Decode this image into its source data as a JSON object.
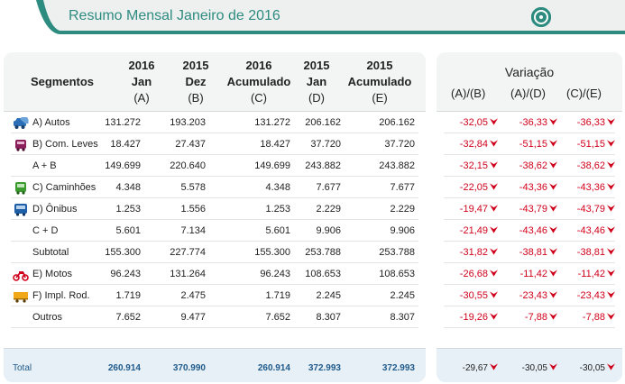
{
  "title": "Resumo Mensal Janeiro de 2016",
  "colors": {
    "accent": "#2d8b7f",
    "negative": "#d0021b",
    "total_text": "#1f5a8a"
  },
  "logos": [
    "wheel-logo-1",
    "wheel-logo-2",
    "wheel-logo-3",
    "wheel-logo-4"
  ],
  "table": {
    "headers": {
      "segmentos": "Segmentos",
      "c1": [
        "2016",
        "Jan",
        "(A)"
      ],
      "c2": [
        "2015",
        "Dez",
        "(B)"
      ],
      "c3": [
        "2016",
        "Acumulado",
        "(C)"
      ],
      "c4": [
        "2015",
        "Jan",
        "(D)"
      ],
      "c5": [
        "2015",
        "Acumulado",
        "(E)"
      ]
    },
    "variacao_title": "Variação",
    "variacao_headers": [
      "(A)/(B)",
      "(A)/(D)",
      "(C)/(E)"
    ],
    "rows": [
      {
        "label": "A) Autos",
        "icon": "car-icon",
        "values": [
          "131.272",
          "193.203",
          "131.272",
          "206.162",
          "206.162"
        ],
        "var": [
          "-32,05",
          "-36,33",
          "-36,33"
        ]
      },
      {
        "label": "B) Com. Leves",
        "icon": "van-icon",
        "values": [
          "18.427",
          "27.437",
          "18.427",
          "37.720",
          "37.720"
        ],
        "var": [
          "-32,84",
          "-51,15",
          "-51,15"
        ]
      },
      {
        "label": "A + B",
        "icon": "",
        "values": [
          "149.699",
          "220.640",
          "149.699",
          "243.882",
          "243.882"
        ],
        "var": [
          "-32,15",
          "-38,62",
          "-38,62"
        ]
      },
      {
        "label": "C) Caminhões",
        "icon": "truck-icon",
        "values": [
          "4.348",
          "5.578",
          "4.348",
          "7.677",
          "7.677"
        ],
        "var": [
          "-22,05",
          "-43,36",
          "-43,36"
        ]
      },
      {
        "label": "D) Ônibus",
        "icon": "bus-icon",
        "values": [
          "1.253",
          "1.556",
          "1.253",
          "2.229",
          "2.229"
        ],
        "var": [
          "-19,47",
          "-43,79",
          "-43,79"
        ]
      },
      {
        "label": "C + D",
        "icon": "",
        "values": [
          "5.601",
          "7.134",
          "5.601",
          "9.906",
          "9.906"
        ],
        "var": [
          "-21,49",
          "-43,46",
          "-43,46"
        ]
      },
      {
        "label": "Subtotal",
        "icon": "",
        "values": [
          "155.300",
          "227.774",
          "155.300",
          "253.788",
          "253.788"
        ],
        "var": [
          "-31,82",
          "-38,81",
          "-38,81"
        ]
      },
      {
        "label": "E) Motos",
        "icon": "motorcycle-icon",
        "values": [
          "96.243",
          "131.264",
          "96.243",
          "108.653",
          "108.653"
        ],
        "var": [
          "-26,68",
          "-11,42",
          "-11,42"
        ]
      },
      {
        "label": "F) Impl. Rod.",
        "icon": "trailer-icon",
        "values": [
          "1.719",
          "2.475",
          "1.719",
          "2.245",
          "2.245"
        ],
        "var": [
          "-30,55",
          "-23,43",
          "-23,43"
        ]
      },
      {
        "label": "Outros",
        "icon": "",
        "values": [
          "7.652",
          "9.477",
          "7.652",
          "8.307",
          "8.307"
        ],
        "var": [
          "-19,26",
          "-7,88",
          "-7,88"
        ]
      }
    ],
    "total": {
      "label": "Total",
      "values": [
        "260.914",
        "370.990",
        "260.914",
        "372.993",
        "372.993"
      ],
      "var": [
        "-29,67",
        "-30,05",
        "-30,05"
      ]
    }
  }
}
